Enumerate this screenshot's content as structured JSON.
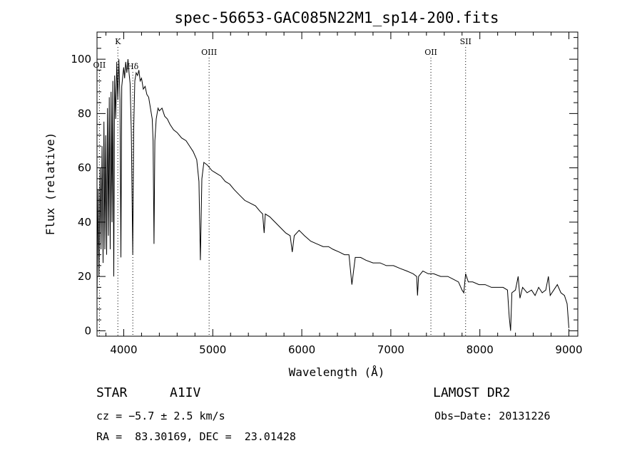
{
  "chart_data": {
    "type": "line",
    "title": "spec-56653-GAC085N22M1_sp14-200.fits",
    "xlabel": "Wavelength (Å)",
    "ylabel": "Flux (relative)",
    "xlim": [
      3700,
      9100
    ],
    "ylim": [
      -2,
      110
    ],
    "xticks": [
      4000,
      5000,
      6000,
      7000,
      8000,
      9000
    ],
    "yticks": [
      0,
      20,
      40,
      60,
      80,
      100
    ],
    "grid": false,
    "series": [
      {
        "values": [
          [
            3700,
            12
          ],
          [
            3712,
            52
          ],
          [
            3722,
            20
          ],
          [
            3735,
            60
          ],
          [
            3745,
            30
          ],
          [
            3757,
            68
          ],
          [
            3768,
            25
          ],
          [
            3778,
            77
          ],
          [
            3788,
            30
          ],
          [
            3798,
            72
          ],
          [
            3808,
            28
          ],
          [
            3818,
            82
          ],
          [
            3828,
            35
          ],
          [
            3838,
            86
          ],
          [
            3848,
            30
          ],
          [
            3858,
            88
          ],
          [
            3868,
            40
          ],
          [
            3878,
            92
          ],
          [
            3888,
            20
          ],
          [
            3898,
            94
          ],
          [
            3910,
            78
          ],
          [
            3922,
            99
          ],
          [
            3933,
            85
          ],
          [
            3945,
            100
          ],
          [
            3958,
            85
          ],
          [
            3968,
            27
          ],
          [
            3978,
            90
          ],
          [
            3990,
            94
          ],
          [
            4000,
            97
          ],
          [
            4010,
            93
          ],
          [
            4022,
            99
          ],
          [
            4035,
            95
          ],
          [
            4048,
            100
          ],
          [
            4060,
            95
          ],
          [
            4072,
            91
          ],
          [
            4085,
            73
          ],
          [
            4101,
            28
          ],
          [
            4112,
            74
          ],
          [
            4125,
            92
          ],
          [
            4140,
            95
          ],
          [
            4155,
            94
          ],
          [
            4170,
            96
          ],
          [
            4185,
            92
          ],
          [
            4200,
            93
          ],
          [
            4220,
            89
          ],
          [
            4240,
            90
          ],
          [
            4260,
            87
          ],
          [
            4280,
            86
          ],
          [
            4300,
            82
          ],
          [
            4320,
            78
          ],
          [
            4330,
            70
          ],
          [
            4340,
            32
          ],
          [
            4350,
            70
          ],
          [
            4365,
            78
          ],
          [
            4385,
            82
          ],
          [
            4400,
            81
          ],
          [
            4430,
            82
          ],
          [
            4460,
            79
          ],
          [
            4490,
            78
          ],
          [
            4520,
            76
          ],
          [
            4560,
            74
          ],
          [
            4600,
            73
          ],
          [
            4650,
            71
          ],
          [
            4700,
            70
          ],
          [
            4740,
            68
          ],
          [
            4780,
            66
          ],
          [
            4820,
            63
          ],
          [
            4845,
            55
          ],
          [
            4861,
            26
          ],
          [
            4878,
            56
          ],
          [
            4900,
            62
          ],
          [
            4940,
            61
          ],
          [
            4990,
            59
          ],
          [
            5040,
            58
          ],
          [
            5090,
            57
          ],
          [
            5140,
            55
          ],
          [
            5190,
            54
          ],
          [
            5240,
            52
          ],
          [
            5300,
            50
          ],
          [
            5360,
            48
          ],
          [
            5420,
            47
          ],
          [
            5480,
            46
          ],
          [
            5530,
            44
          ],
          [
            5560,
            43
          ],
          [
            5577,
            36
          ],
          [
            5590,
            43
          ],
          [
            5640,
            42
          ],
          [
            5700,
            40
          ],
          [
            5760,
            38
          ],
          [
            5820,
            36
          ],
          [
            5870,
            35
          ],
          [
            5893,
            29
          ],
          [
            5915,
            35
          ],
          [
            5970,
            37
          ],
          [
            6030,
            35
          ],
          [
            6100,
            33
          ],
          [
            6170,
            32
          ],
          [
            6240,
            31
          ],
          [
            6300,
            31
          ],
          [
            6350,
            30
          ],
          [
            6420,
            29
          ],
          [
            6480,
            28
          ],
          [
            6530,
            28
          ],
          [
            6563,
            17
          ],
          [
            6600,
            27
          ],
          [
            6660,
            27
          ],
          [
            6720,
            26
          ],
          [
            6800,
            25
          ],
          [
            6880,
            25
          ],
          [
            6950,
            24
          ],
          [
            7030,
            24
          ],
          [
            7100,
            23
          ],
          [
            7180,
            22
          ],
          [
            7250,
            21
          ],
          [
            7290,
            20
          ],
          [
            7300,
            13
          ],
          [
            7312,
            20
          ],
          [
            7360,
            22
          ],
          [
            7420,
            21
          ],
          [
            7480,
            21
          ],
          [
            7560,
            20
          ],
          [
            7640,
            20
          ],
          [
            7700,
            19
          ],
          [
            7760,
            18
          ],
          [
            7800,
            15
          ],
          [
            7820,
            14
          ],
          [
            7840,
            21
          ],
          [
            7870,
            18
          ],
          [
            7920,
            18
          ],
          [
            7990,
            17
          ],
          [
            8060,
            17
          ],
          [
            8130,
            16
          ],
          [
            8200,
            16
          ],
          [
            8260,
            16
          ],
          [
            8310,
            15
          ],
          [
            8330,
            5
          ],
          [
            8345,
            0
          ],
          [
            8360,
            14
          ],
          [
            8400,
            15
          ],
          [
            8430,
            20
          ],
          [
            8450,
            12
          ],
          [
            8480,
            16
          ],
          [
            8530,
            14
          ],
          [
            8580,
            15
          ],
          [
            8620,
            13
          ],
          [
            8660,
            16
          ],
          [
            8700,
            14
          ],
          [
            8740,
            15
          ],
          [
            8770,
            20
          ],
          [
            8790,
            13
          ],
          [
            8830,
            15
          ],
          [
            8870,
            17
          ],
          [
            8910,
            14
          ],
          [
            8950,
            13
          ],
          [
            8980,
            10
          ],
          [
            9000,
            1
          ]
        ]
      }
    ],
    "reference_lines": [
      {
        "label": "OII",
        "x": 3727
      },
      {
        "label": "K",
        "x": 3934
      },
      {
        "label": "Hδ",
        "x": 4102
      },
      {
        "label": "OIII",
        "x": 4959
      },
      {
        "label": "OII",
        "x": 7450
      },
      {
        "label": "SII",
        "x": 7840
      }
    ]
  },
  "info": {
    "object_type": "STAR",
    "subclass": "A1IV",
    "survey": "LAMOST DR2",
    "cz_text": "cz = −5.7 ± 2.5 km/s",
    "obs_date_text": "Obs−Date: 20131226",
    "coords_text": "RA =  83.30169, DEC =  23.01428"
  }
}
